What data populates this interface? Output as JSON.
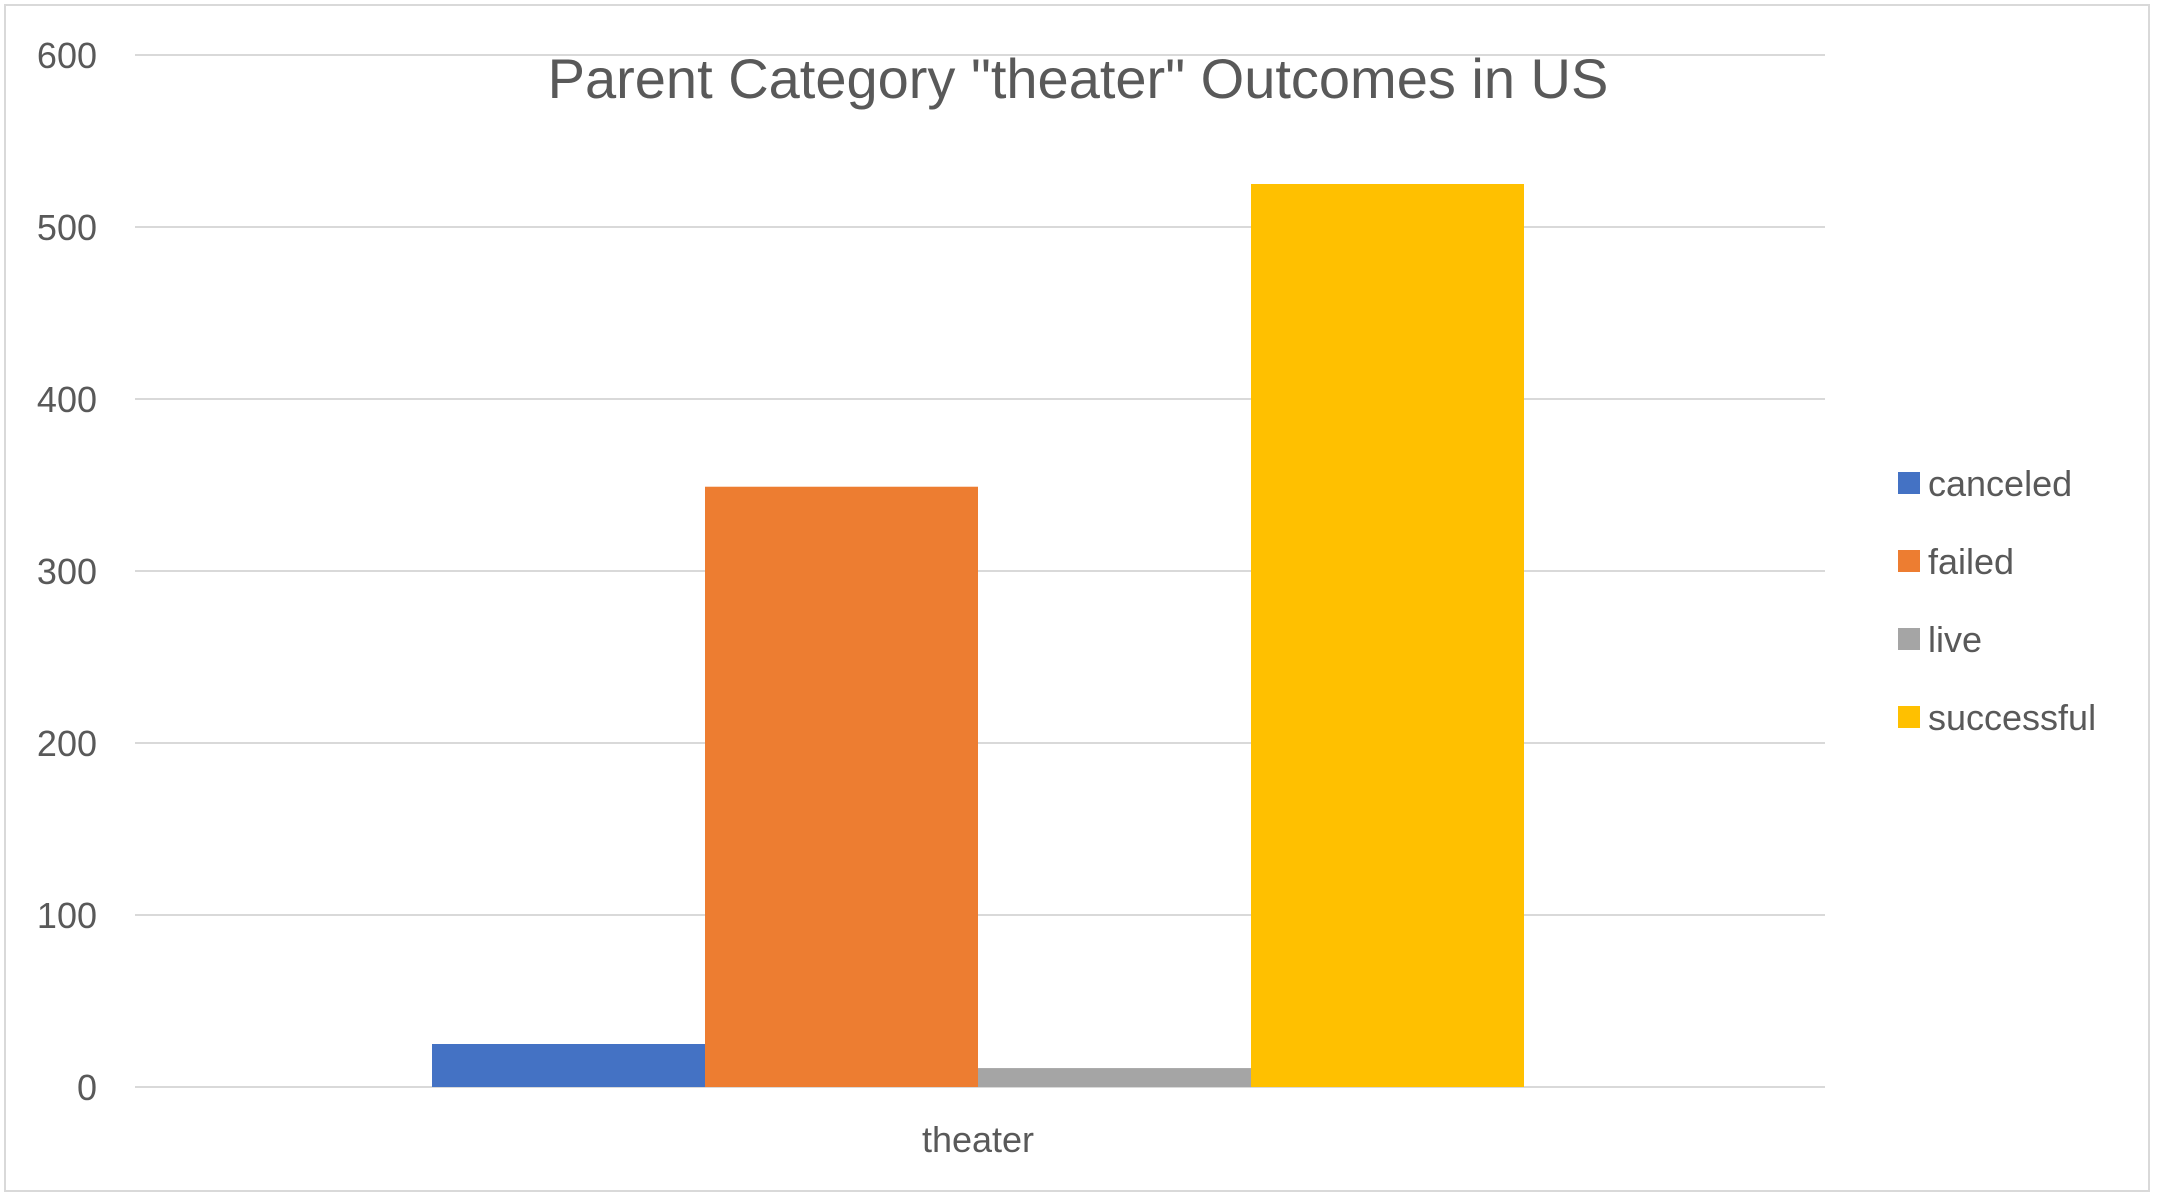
{
  "chart_data": {
    "type": "bar",
    "title": "Parent Category \"theater\" Outcomes in US",
    "xlabel": "",
    "ylabel": "",
    "categories": [
      "theater"
    ],
    "series": [
      {
        "name": "canceled",
        "values": [
          25
        ],
        "color": "#4472c4"
      },
      {
        "name": "failed",
        "values": [
          349
        ],
        "color": "#ed7d31"
      },
      {
        "name": "live",
        "values": [
          11
        ],
        "color": "#a5a5a5"
      },
      {
        "name": "successful",
        "values": [
          525
        ],
        "color": "#ffc000"
      }
    ],
    "ylim": [
      0,
      600
    ],
    "yticks": [
      0,
      100,
      200,
      300,
      400,
      500,
      600
    ],
    "grid": true,
    "legend_position": "right"
  }
}
